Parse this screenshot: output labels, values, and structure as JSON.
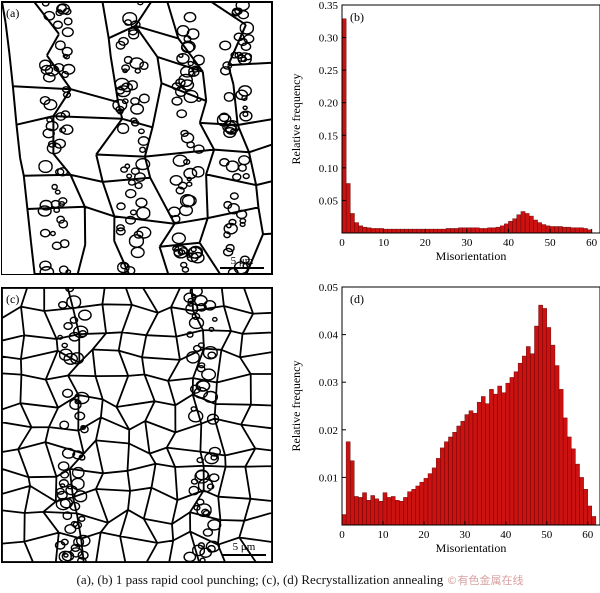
{
  "micrographs": [
    {
      "id": "a",
      "label": "(a)",
      "scale_label": "5 μm"
    },
    {
      "id": "c",
      "label": "(c)",
      "scale_label": "5 μm"
    }
  ],
  "chart_data": [
    {
      "id": "b",
      "type": "bar",
      "panel_label": "(b)",
      "title": "",
      "xlabel": "Misorientation",
      "ylabel": "Relative frequency",
      "xlim": [
        0,
        62
      ],
      "ylim": [
        0,
        0.35
      ],
      "xticks": [
        0,
        10,
        20,
        30,
        40,
        50,
        60
      ],
      "yticks": [
        0.05,
        0.1,
        0.15,
        0.2,
        0.25,
        0.3,
        0.35
      ],
      "ytick_labels": [
        "0.05",
        "0.10",
        "0.15",
        "0.20",
        "0.25",
        "0.30",
        "0.35"
      ],
      "bar_color": "#cc1111",
      "bin_width": 1,
      "x": [
        1,
        2,
        3,
        4,
        5,
        6,
        7,
        8,
        9,
        10,
        11,
        12,
        13,
        14,
        15,
        16,
        17,
        18,
        19,
        20,
        21,
        22,
        23,
        24,
        25,
        26,
        27,
        28,
        29,
        30,
        31,
        32,
        33,
        34,
        35,
        36,
        37,
        38,
        39,
        40,
        41,
        42,
        43,
        44,
        45,
        46,
        47,
        48,
        49,
        50,
        51,
        52,
        53,
        54,
        55,
        56,
        57,
        58,
        59,
        60
      ],
      "values": [
        0.329,
        0.076,
        0.03,
        0.016,
        0.011,
        0.009,
        0.008,
        0.007,
        0.007,
        0.007,
        0.006,
        0.006,
        0.006,
        0.006,
        0.006,
        0.006,
        0.006,
        0.006,
        0.006,
        0.006,
        0.006,
        0.006,
        0.006,
        0.006,
        0.006,
        0.007,
        0.007,
        0.007,
        0.008,
        0.008,
        0.008,
        0.008,
        0.008,
        0.007,
        0.007,
        0.008,
        0.008,
        0.009,
        0.011,
        0.014,
        0.018,
        0.022,
        0.028,
        0.033,
        0.03,
        0.026,
        0.02,
        0.016,
        0.013,
        0.011,
        0.01,
        0.01,
        0.01,
        0.009,
        0.009,
        0.008,
        0.008,
        0.008,
        0.007,
        0.005
      ]
    },
    {
      "id": "d",
      "type": "bar",
      "panel_label": "(d)",
      "title": "",
      "xlabel": "Misorientation",
      "ylabel": "Relative frequency",
      "xlim": [
        0,
        63
      ],
      "ylim": [
        0,
        0.05
      ],
      "xticks": [
        0,
        10,
        20,
        30,
        40,
        50,
        60
      ],
      "yticks": [
        0.01,
        0.02,
        0.03,
        0.04,
        0.05
      ],
      "ytick_labels": [
        "0.01",
        "0.02",
        "0.03",
        "0.04",
        "0.05"
      ],
      "bar_color": "#cc1111",
      "bin_width": 1,
      "x": [
        1,
        2,
        3,
        4,
        5,
        6,
        7,
        8,
        9,
        10,
        11,
        12,
        13,
        14,
        15,
        16,
        17,
        18,
        19,
        20,
        21,
        22,
        23,
        24,
        25,
        26,
        27,
        28,
        29,
        30,
        31,
        32,
        33,
        34,
        35,
        36,
        37,
        38,
        39,
        40,
        41,
        42,
        43,
        44,
        45,
        46,
        47,
        48,
        49,
        50,
        51,
        52,
        53,
        54,
        55,
        56,
        57,
        58,
        59,
        60,
        61,
        62
      ],
      "values": [
        0.0022,
        0.0175,
        0.0135,
        0.006,
        0.0058,
        0.0068,
        0.0052,
        0.0062,
        0.0055,
        0.005,
        0.0068,
        0.0058,
        0.006,
        0.0052,
        0.005,
        0.0058,
        0.007,
        0.0075,
        0.0082,
        0.009,
        0.0098,
        0.0108,
        0.012,
        0.014,
        0.0162,
        0.0175,
        0.0185,
        0.0195,
        0.0208,
        0.0218,
        0.0232,
        0.024,
        0.0235,
        0.0258,
        0.027,
        0.0255,
        0.0285,
        0.0275,
        0.0292,
        0.0278,
        0.0298,
        0.031,
        0.0322,
        0.034,
        0.0355,
        0.0375,
        0.036,
        0.0418,
        0.0462,
        0.0455,
        0.0415,
        0.0378,
        0.0335,
        0.0285,
        0.0225,
        0.0185,
        0.016,
        0.0128,
        0.01,
        0.0075,
        0.004,
        0.0018
      ]
    }
  ],
  "caption": {
    "text": "(a), (b) 1 pass rapid cool punching; (c), (d) Recrystallization annealing",
    "watermark": "©有色金属在线"
  }
}
